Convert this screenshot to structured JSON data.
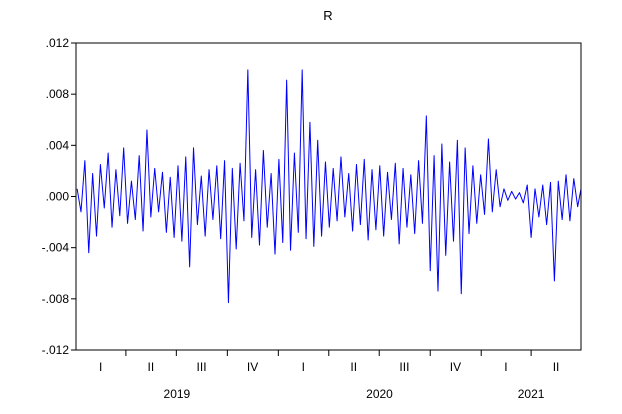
{
  "chart_data": {
    "type": "line",
    "title": "R",
    "xlabel": "",
    "ylabel": "",
    "ylim": [
      -0.012,
      0.012
    ],
    "yticks": [
      {
        "value": 0.012,
        "label": ".012"
      },
      {
        "value": 0.008,
        "label": ".008"
      },
      {
        "value": 0.004,
        "label": ".004"
      },
      {
        "value": 0.0,
        "label": ".000"
      },
      {
        "value": -0.004,
        "label": "-.004"
      },
      {
        "value": -0.008,
        "label": "-.008"
      },
      {
        "value": -0.012,
        "label": "-.012"
      }
    ],
    "xrange": [
      "2019-01-01",
      "2021-06-30"
    ],
    "quarters": [
      {
        "label": "I",
        "start": "2019-01-01",
        "end": "2019-03-31"
      },
      {
        "label": "II",
        "start": "2019-04-01",
        "end": "2019-06-30"
      },
      {
        "label": "III",
        "start": "2019-07-01",
        "end": "2019-09-30"
      },
      {
        "label": "IV",
        "start": "2019-10-01",
        "end": "2019-12-31"
      },
      {
        "label": "I",
        "start": "2020-01-01",
        "end": "2020-03-31"
      },
      {
        "label": "II",
        "start": "2020-04-01",
        "end": "2020-06-30"
      },
      {
        "label": "III",
        "start": "2020-07-01",
        "end": "2020-09-30"
      },
      {
        "label": "IV",
        "start": "2020-10-01",
        "end": "2020-12-31"
      },
      {
        "label": "I",
        "start": "2021-01-01",
        "end": "2021-03-31"
      },
      {
        "label": "II",
        "start": "2021-04-01",
        "end": "2021-06-30"
      }
    ],
    "years": [
      {
        "label": "2019",
        "start": "2019-01-01",
        "end": "2019-12-31"
      },
      {
        "label": "2020",
        "start": "2020-01-01",
        "end": "2020-12-31"
      },
      {
        "label": "2021",
        "start": "2021-01-01",
        "end": "2021-06-30"
      }
    ],
    "series": [
      {
        "color": "#0000ff",
        "points": [
          [
            "2019-01-03",
            0.0006
          ],
          [
            "2019-01-10",
            -0.0012
          ],
          [
            "2019-01-17",
            0.0028
          ],
          [
            "2019-01-24",
            -0.0044
          ],
          [
            "2019-01-31",
            0.0018
          ],
          [
            "2019-02-07",
            -0.0031
          ],
          [
            "2019-02-14",
            0.0025
          ],
          [
            "2019-02-21",
            -0.0009
          ],
          [
            "2019-02-28",
            0.0034
          ],
          [
            "2019-03-07",
            -0.0024
          ],
          [
            "2019-03-14",
            0.0021
          ],
          [
            "2019-03-21",
            -0.0015
          ],
          [
            "2019-03-28",
            0.0038
          ],
          [
            "2019-04-04",
            -0.0021
          ],
          [
            "2019-04-11",
            0.0012
          ],
          [
            "2019-04-18",
            -0.0018
          ],
          [
            "2019-04-25",
            0.0032
          ],
          [
            "2019-05-02",
            -0.0027
          ],
          [
            "2019-05-09",
            0.0052
          ],
          [
            "2019-05-16",
            -0.0016
          ],
          [
            "2019-05-23",
            0.0022
          ],
          [
            "2019-05-30",
            -0.0012
          ],
          [
            "2019-06-06",
            0.0019
          ],
          [
            "2019-06-13",
            -0.0028
          ],
          [
            "2019-06-20",
            0.0015
          ],
          [
            "2019-06-27",
            -0.0032
          ],
          [
            "2019-07-04",
            0.0024
          ],
          [
            "2019-07-11",
            -0.0035
          ],
          [
            "2019-07-18",
            0.0031
          ],
          [
            "2019-07-25",
            -0.0055
          ],
          [
            "2019-08-01",
            0.0038
          ],
          [
            "2019-08-08",
            -0.0022
          ],
          [
            "2019-08-15",
            0.0016
          ],
          [
            "2019-08-22",
            -0.0031
          ],
          [
            "2019-08-29",
            0.0021
          ],
          [
            "2019-09-05",
            -0.0018
          ],
          [
            "2019-09-12",
            0.0024
          ],
          [
            "2019-09-19",
            -0.0033
          ],
          [
            "2019-09-26",
            0.0028
          ],
          [
            "2019-10-03",
            -0.0083
          ],
          [
            "2019-10-10",
            0.0022
          ],
          [
            "2019-10-17",
            -0.0041
          ],
          [
            "2019-10-24",
            0.0026
          ],
          [
            "2019-10-31",
            -0.0019
          ],
          [
            "2019-11-07",
            0.0099
          ],
          [
            "2019-11-14",
            -0.0032
          ],
          [
            "2019-11-21",
            0.0021
          ],
          [
            "2019-11-28",
            -0.0038
          ],
          [
            "2019-12-05",
            0.0036
          ],
          [
            "2019-12-12",
            -0.0024
          ],
          [
            "2019-12-19",
            0.0018
          ],
          [
            "2019-12-26",
            -0.0045
          ],
          [
            "2020-01-02",
            0.0029
          ],
          [
            "2020-01-09",
            -0.0036
          ],
          [
            "2020-01-16",
            0.0091
          ],
          [
            "2020-01-23",
            -0.0042
          ],
          [
            "2020-01-30",
            0.0034
          ],
          [
            "2020-02-06",
            -0.0028
          ],
          [
            "2020-02-13",
            0.0099
          ],
          [
            "2020-02-20",
            -0.0033
          ],
          [
            "2020-02-27",
            0.0058
          ],
          [
            "2020-03-05",
            -0.0039
          ],
          [
            "2020-03-12",
            0.0044
          ],
          [
            "2020-03-19",
            -0.0031
          ],
          [
            "2020-03-26",
            0.0027
          ],
          [
            "2020-04-02",
            -0.0024
          ],
          [
            "2020-04-09",
            0.0022
          ],
          [
            "2020-04-16",
            -0.0019
          ],
          [
            "2020-04-23",
            0.0031
          ],
          [
            "2020-04-30",
            -0.0016
          ],
          [
            "2020-05-07",
            0.0018
          ],
          [
            "2020-05-14",
            -0.0027
          ],
          [
            "2020-05-21",
            0.0025
          ],
          [
            "2020-05-28",
            -0.0022
          ],
          [
            "2020-06-04",
            0.0029
          ],
          [
            "2020-06-11",
            -0.0034
          ],
          [
            "2020-06-18",
            0.0021
          ],
          [
            "2020-06-25",
            -0.0026
          ],
          [
            "2020-07-02",
            0.0024
          ],
          [
            "2020-07-09",
            -0.0031
          ],
          [
            "2020-07-16",
            0.0019
          ],
          [
            "2020-07-23",
            -0.0018
          ],
          [
            "2020-07-30",
            0.0026
          ],
          [
            "2020-08-06",
            -0.0037
          ],
          [
            "2020-08-13",
            0.0022
          ],
          [
            "2020-08-20",
            -0.0024
          ],
          [
            "2020-08-27",
            0.0017
          ],
          [
            "2020-09-03",
            -0.0029
          ],
          [
            "2020-09-10",
            0.0028
          ],
          [
            "2020-09-17",
            -0.0021
          ],
          [
            "2020-09-24",
            0.0063
          ],
          [
            "2020-10-01",
            -0.0058
          ],
          [
            "2020-10-08",
            0.0032
          ],
          [
            "2020-10-15",
            -0.0074
          ],
          [
            "2020-10-22",
            0.0041
          ],
          [
            "2020-10-29",
            -0.0046
          ],
          [
            "2020-11-05",
            0.0027
          ],
          [
            "2020-11-12",
            -0.0035
          ],
          [
            "2020-11-19",
            0.0044
          ],
          [
            "2020-11-26",
            -0.0076
          ],
          [
            "2020-12-03",
            0.0038
          ],
          [
            "2020-12-10",
            -0.0029
          ],
          [
            "2020-12-17",
            0.0024
          ],
          [
            "2020-12-24",
            -0.0021
          ],
          [
            "2020-12-31",
            0.0017
          ],
          [
            "2021-01-07",
            -0.0014
          ],
          [
            "2021-01-14",
            0.0045
          ],
          [
            "2021-01-21",
            -0.0012
          ],
          [
            "2021-01-28",
            0.0021
          ],
          [
            "2021-02-04",
            -0.0008
          ],
          [
            "2021-02-11",
            0.0006
          ],
          [
            "2021-02-18",
            -0.0003
          ],
          [
            "2021-02-25",
            0.0004
          ],
          [
            "2021-03-04",
            -0.0002
          ],
          [
            "2021-03-11",
            0.0003
          ],
          [
            "2021-03-18",
            -0.0005
          ],
          [
            "2021-03-25",
            0.0009
          ],
          [
            "2021-04-01",
            -0.0032
          ],
          [
            "2021-04-08",
            0.0006
          ],
          [
            "2021-04-15",
            -0.0016
          ],
          [
            "2021-04-22",
            0.0009
          ],
          [
            "2021-04-29",
            -0.0022
          ],
          [
            "2021-05-06",
            0.0011
          ],
          [
            "2021-05-13",
            -0.0066
          ],
          [
            "2021-05-20",
            0.0012
          ],
          [
            "2021-05-27",
            -0.0018
          ],
          [
            "2021-06-03",
            0.0017
          ],
          [
            "2021-06-10",
            -0.0019
          ],
          [
            "2021-06-17",
            0.0014
          ],
          [
            "2021-06-24",
            -0.0008
          ],
          [
            "2021-06-30",
            0.0006
          ]
        ]
      }
    ],
    "grid": false,
    "legend": "none"
  }
}
